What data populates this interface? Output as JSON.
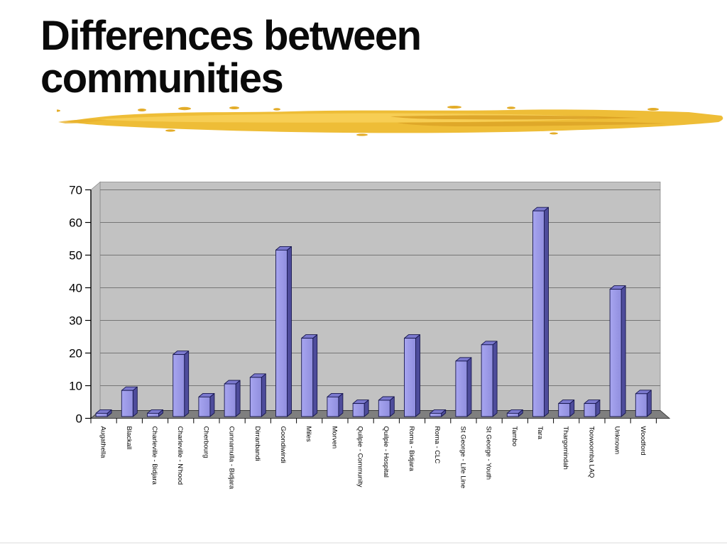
{
  "slide": {
    "title_line1": "Differences between",
    "title_line2": "communities"
  },
  "colors": {
    "title_text": "#0a0a0a",
    "brush_base": "#EEBD37",
    "brush_highlight": "#F7CF58",
    "brush_dark": "#D6991F",
    "wall": "#C2C2C2",
    "wall_border": "#8C8C8C",
    "gridline": "#767676",
    "floor": "#7F7F7F",
    "floor_border": "#3A3A3A",
    "axis": "#000000",
    "bar_front_light": "#A7A5F0",
    "bar_front": "#908EDE",
    "bar_side": "#4E4C9B",
    "bar_top": "#7B79CE",
    "bar_outline": "#17174E",
    "label_text": "#000000"
  },
  "chart_data": {
    "type": "bar",
    "style": "3d-column",
    "title": "",
    "xlabel": "",
    "ylabel": "",
    "categories": [
      "Augathella",
      "Blackall",
      "Charleville - Bidjara",
      "Charleville - N'hood",
      "Cherbourg",
      "Cunnamulla - Bidjara",
      "Dirranbandi",
      "Goondiwindi",
      "Miles",
      "Morven",
      "Quilpie - Community",
      "Quilpie - Hospital",
      "Roma - Bidjara",
      "Roma - CLC",
      "St George - Life Line",
      "St George - Youth",
      "Tambo",
      "Tara",
      "Thargomindah",
      "Toowoomba LAQ",
      "Unknown",
      "Woodford"
    ],
    "values": [
      1,
      8,
      1,
      19,
      6,
      10,
      12,
      51,
      24,
      6,
      4,
      5,
      24,
      1,
      17,
      22,
      1,
      63,
      4,
      4,
      39,
      7
    ],
    "ylim": [
      0,
      70
    ],
    "yticks": [
      0,
      10,
      20,
      30,
      40,
      50,
      60,
      70
    ],
    "grid": true,
    "legend": false
  }
}
